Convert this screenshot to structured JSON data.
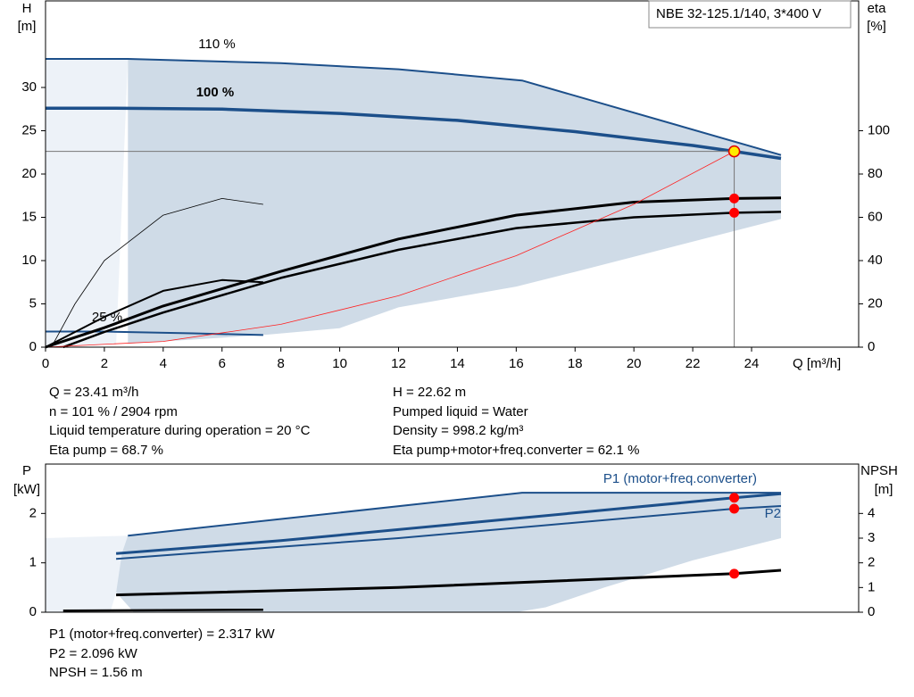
{
  "chart_data": [
    {
      "type": "line",
      "title": "NBE 32-125.1/140, 3*400 V",
      "y_label": "H",
      "y_unit": "[m]",
      "y2_label": "eta",
      "y2_unit": "[%]",
      "x_label": "Q [m³/h]",
      "xlim": [
        0,
        27.64
      ],
      "ylim": [
        0,
        40
      ],
      "y2lim": [
        0,
        160
      ],
      "xticks": [
        0,
        2,
        4,
        6,
        8,
        10,
        12,
        14,
        16,
        18,
        20,
        22,
        24
      ],
      "yticks": [
        0,
        5,
        10,
        15,
        20,
        25,
        30
      ],
      "y2ticks": [
        0,
        20,
        40,
        60,
        80,
        100
      ],
      "operating_point": {
        "x": 23.41,
        "y": 22.62
      },
      "series": [
        {
          "style": "area",
          "color": "#edf2f8",
          "x": [
            0,
            2.8,
            2.4,
            0
          ],
          "values": [
            33.3,
            33.3,
            0.3,
            0
          ]
        },
        {
          "style": "area",
          "color": "#cfdbe7",
          "x": [
            2.8,
            8,
            12,
            16.2,
            25,
            25,
            22,
            18,
            16,
            12,
            10,
            7.4,
            2.8
          ],
          "values": [
            33.3,
            32.8,
            32.1,
            30.8,
            22.2,
            14.8,
            12.2,
            8.7,
            7.0,
            4.6,
            2.2,
            1.4,
            0.4
          ]
        },
        {
          "name": "110 %",
          "color": "#1c4f8a",
          "width": 2,
          "x": [
            0,
            2.8,
            8,
            12,
            16.2,
            25
          ],
          "values": [
            33.3,
            33.3,
            32.8,
            32.1,
            30.8,
            22.2
          ]
        },
        {
          "name": "100 %",
          "color": "#1c4f8a",
          "width": 3.5,
          "x": [
            0,
            2.4,
            6,
            10,
            14,
            18,
            22,
            23.41,
            25
          ],
          "values": [
            27.6,
            27.6,
            27.5,
            27.0,
            26.2,
            24.9,
            23.3,
            22.62,
            21.8
          ]
        },
        {
          "name": "25 %",
          "color": "#1c4f8a",
          "width": 2,
          "x": [
            0,
            2,
            5,
            7.4
          ],
          "values": [
            1.8,
            1.8,
            1.6,
            1.4
          ]
        },
        {
          "axis": "y2",
          "color": "#000000",
          "width": 0.8,
          "x": [
            0.2,
            1,
            2,
            4,
            6,
            7.4
          ],
          "values": [
            0,
            20,
            40,
            61,
            68.7,
            66
          ]
        },
        {
          "axis": "y2",
          "color": "#000000",
          "width": 2,
          "x": [
            0,
            2,
            4,
            6,
            7.4
          ],
          "values": [
            0,
            14,
            26,
            31,
            30
          ]
        },
        {
          "axis": "y2",
          "color": "#000000",
          "width": 3,
          "marker": "#ff0000",
          "x": [
            0,
            2,
            4,
            8,
            12,
            16,
            20,
            23.41,
            25
          ],
          "values": [
            0,
            9,
            19,
            35,
            50,
            61,
            67,
            68.7,
            69
          ]
        },
        {
          "axis": "y2",
          "color": "#000000",
          "width": 2.5,
          "marker": "#ff0000",
          "x": [
            0.6,
            2,
            4,
            8,
            12,
            16,
            20,
            23.41,
            25
          ],
          "values": [
            0,
            7,
            16,
            32,
            45,
            55,
            60,
            62.1,
            62.5
          ]
        },
        {
          "color": "#ff2020",
          "width": 0.8,
          "x": [
            0,
            4,
            8,
            12,
            16,
            20,
            23.41
          ],
          "values": [
            0,
            0.66,
            2.64,
            5.94,
            10.57,
            16.51,
            22.62
          ]
        }
      ]
    },
    {
      "type": "line",
      "y_label": "P",
      "y_unit": "[kW]",
      "y2_label": "NPSH",
      "y2_unit": "[m]",
      "xlim": [
        0,
        27.64
      ],
      "ylim": [
        0,
        3
      ],
      "y2lim": [
        0,
        6
      ],
      "yticks": [
        0,
        1,
        2
      ],
      "y2ticks": [
        0,
        1,
        2,
        3,
        4
      ],
      "operating_point": {
        "x": 23.41
      },
      "series": [
        {
          "style": "area",
          "color": "#edf2f8",
          "x": [
            0,
            2.8,
            2.4,
            2.2,
            0
          ],
          "values": [
            1.5,
            1.55,
            0.4,
            0,
            0
          ]
        },
        {
          "style": "area",
          "color": "#cfdbe7",
          "x": [
            2.8,
            16.2,
            25,
            25,
            22,
            19,
            17,
            16,
            3,
            2.4,
            2.6
          ],
          "values": [
            1.55,
            2.42,
            2.42,
            1.5,
            1.05,
            0.5,
            0.1,
            0,
            0,
            0.4,
            1.2
          ]
        },
        {
          "color": "#1c4f8a",
          "width": 2,
          "x": [
            2.8,
            16.2,
            25
          ],
          "values": [
            1.55,
            2.42,
            2.42
          ]
        },
        {
          "name": "P1 (motor+freq.converter)",
          "color": "#1c4f8a",
          "width": 3,
          "marker": "#ff0000",
          "x": [
            2.4,
            8,
            16,
            23.41,
            25
          ],
          "values": [
            1.19,
            1.45,
            1.9,
            2.317,
            2.4
          ]
        },
        {
          "name": "P2",
          "color": "#1c4f8a",
          "width": 2,
          "marker": "#ff0000",
          "x": [
            2.4,
            12,
            23.41,
            25
          ],
          "values": [
            1.08,
            1.5,
            2.096,
            2.15
          ]
        },
        {
          "axis": "y2",
          "color": "#000000",
          "width": 3,
          "marker": "#ff0000",
          "x": [
            2.4,
            12,
            23.41,
            25
          ],
          "values": [
            0.7,
            1.0,
            1.56,
            1.7
          ]
        },
        {
          "color": "#000000",
          "width": 2.5,
          "x": [
            0.6,
            7.4
          ],
          "values": [
            0.03,
            0.05
          ]
        }
      ]
    }
  ],
  "readout": {
    "left": [
      "Q = 23.41 m³/h",
      "n = 101 % / 2904 rpm",
      "Liquid temperature during operation = 20 °C",
      "Eta pump = 68.7 %"
    ],
    "right": [
      "H = 22.62 m",
      "Pumped liquid = Water",
      "Density = 998.2 kg/m³",
      "Eta pump+motor+freq.converter = 62.1 %"
    ],
    "lower": [
      "P1 (motor+freq.converter) = 2.317 kW",
      "P2 = 2.096 kW",
      "NPSH = 1.56 m"
    ]
  }
}
